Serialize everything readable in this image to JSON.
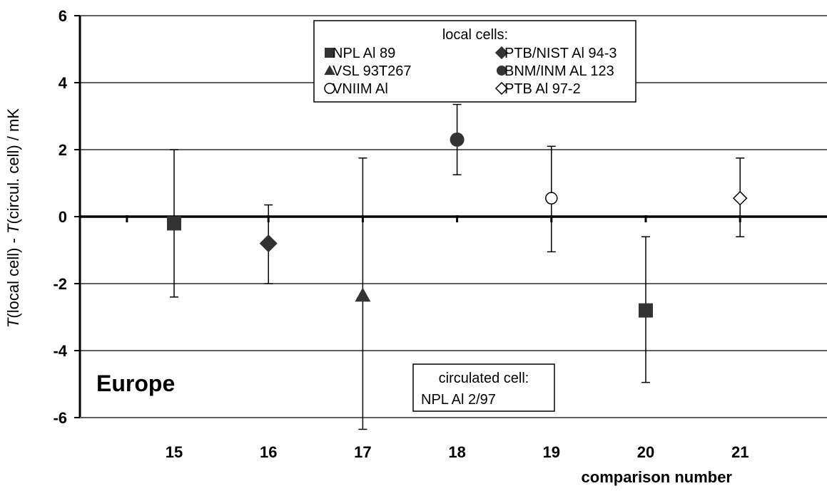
{
  "chart_data": {
    "type": "scatter",
    "xlabel": "comparison number",
    "ylabel": {
      "prefix_italic": "T",
      "part1": "(local cell) - ",
      "mid_italic": "T",
      "part2": "(circul. cell) / mK"
    },
    "xlim": [
      14,
      22
    ],
    "ylim": [
      -6,
      6
    ],
    "x_ticks": [
      15,
      16,
      17,
      18,
      19,
      20,
      21
    ],
    "y_ticks": [
      -6,
      -4,
      -2,
      0,
      2,
      4,
      6
    ],
    "y_tick_labels": [
      "-6",
      "-4",
      "-2",
      "0",
      "2",
      "4",
      "6"
    ],
    "grid": "horizontal",
    "region_label": "Europe",
    "legend": {
      "title": "local cells:",
      "placement": "top-center",
      "entries": [
        {
          "label": "NPL Al 89",
          "marker": "square-filled"
        },
        {
          "label": "PTB/NIST Al 94-3",
          "marker": "diamond-filled"
        },
        {
          "label": "VSL 93T267",
          "marker": "triangle-filled"
        },
        {
          "label": "BNM/INM AL 123",
          "marker": "circle-filled"
        },
        {
          "label": "VNIIM Al",
          "marker": "circle-open"
        },
        {
          "label": "PTB Al 97-2",
          "marker": "diamond-open"
        }
      ]
    },
    "circulated_box": {
      "line1": "circulated cell:",
      "line2": "NPL Al 2/97"
    },
    "points": [
      {
        "x": 15,
        "y": -0.2,
        "err_low": -2.4,
        "err_high": 2.0,
        "marker": "square-filled"
      },
      {
        "x": 16,
        "y": -0.8,
        "err_low": -2.0,
        "err_high": 0.35,
        "marker": "diamond-filled"
      },
      {
        "x": 17,
        "y": -2.35,
        "err_low": -6.35,
        "err_high": 1.75,
        "marker": "triangle-filled"
      },
      {
        "x": 18,
        "y": 2.3,
        "err_low": 1.25,
        "err_high": 3.35,
        "marker": "circle-filled"
      },
      {
        "x": 19,
        "y": 0.55,
        "err_low": -1.05,
        "err_high": 2.1,
        "marker": "circle-open"
      },
      {
        "x": 20,
        "y": -2.8,
        "err_low": -4.95,
        "err_high": -0.6,
        "marker": "square-filled"
      },
      {
        "x": 21,
        "y": 0.55,
        "err_low": -0.6,
        "err_high": 1.75,
        "marker": "diamond-open"
      }
    ],
    "colors": {
      "marker": "#333333",
      "axis": "#000000",
      "grid": "#000000"
    }
  }
}
